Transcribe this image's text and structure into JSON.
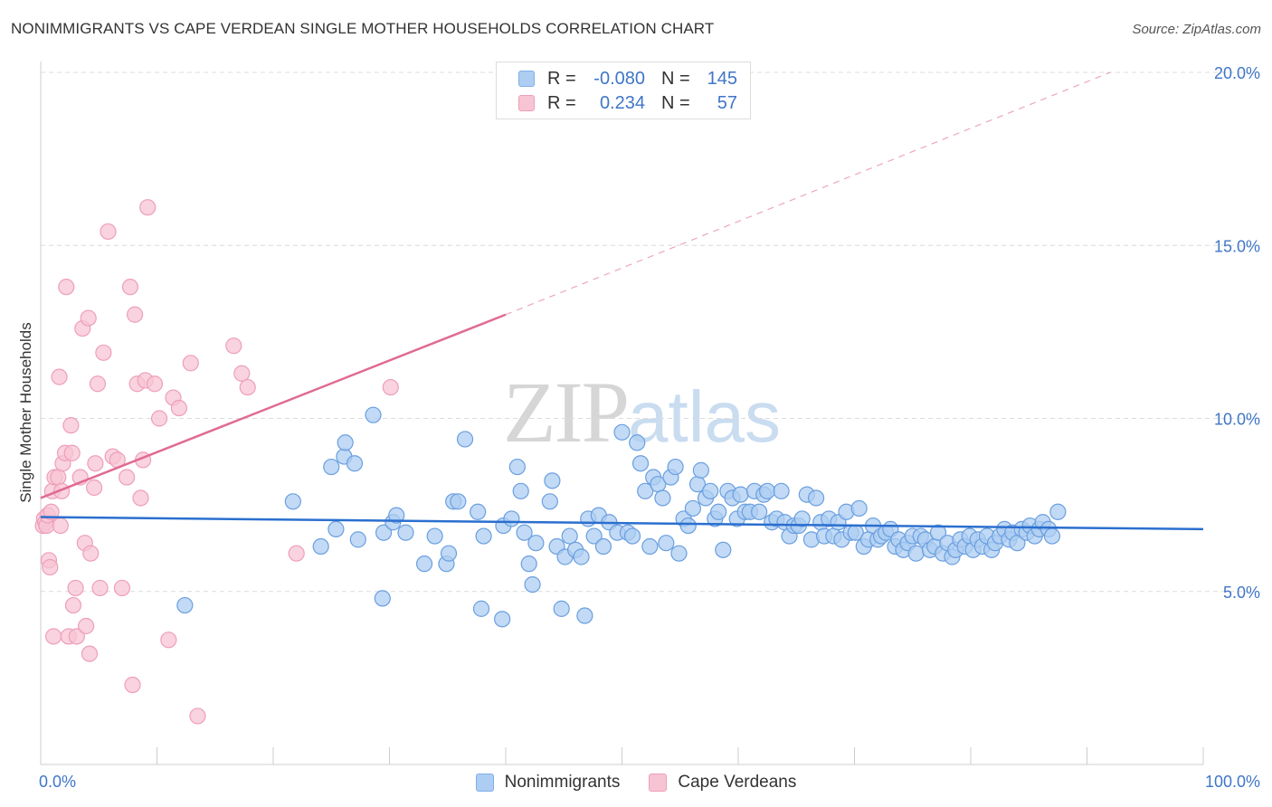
{
  "title": "NONIMMIGRANTS VS CAPE VERDEAN SINGLE MOTHER HOUSEHOLDS CORRELATION CHART",
  "source": "Source: ZipAtlas.com",
  "watermark": {
    "part1": "ZIP",
    "part2": "atlas"
  },
  "legend": {
    "rows": [
      {
        "r_label": "R =",
        "r_value": "-0.080",
        "n_label": "N =",
        "n_value": "145",
        "color": "#aecdf2",
        "border": "#7faee6"
      },
      {
        "r_label": "R =",
        "r_value": "0.234",
        "n_label": "N =",
        "n_value": "57",
        "color": "#f7c4d4",
        "border": "#ee9fb8"
      }
    ]
  },
  "bottom_legend": [
    {
      "label": "Nonimmigrants",
      "color": "#aecdf2",
      "border": "#7faee6"
    },
    {
      "label": "Cape Verdeans",
      "color": "#f7c4d4",
      "border": "#ee9fb8"
    }
  ],
  "chart_data": {
    "type": "scatter",
    "title": "NONIMMIGRANTS VS CAPE VERDEAN SINGLE MOTHER HOUSEHOLDS CORRELATION CHART",
    "xlabel": "",
    "ylabel": "Single Mother Households",
    "xlim": [
      0,
      100
    ],
    "ylim": [
      0,
      20
    ],
    "x_tick_labels": [
      "0.0%",
      "100.0%"
    ],
    "y_ticks": [
      5,
      10,
      15,
      20
    ],
    "y_tick_labels": [
      "5.0%",
      "10.0%",
      "15.0%",
      "20.0%"
    ],
    "grid": true,
    "legend_position": "top-center",
    "series": [
      {
        "name": "Nonimmigrants",
        "color": "#6a9fe0",
        "fill": "#aecdf2",
        "trend": {
          "x": [
            0,
            100
          ],
          "y": [
            7.15,
            6.8
          ],
          "color": "#2b6fcf"
        },
        "points": [
          [
            12.4,
            4.6
          ],
          [
            21.7,
            7.6
          ],
          [
            24.1,
            6.3
          ],
          [
            25.4,
            6.8
          ],
          [
            25.0,
            8.6
          ],
          [
            26.1,
            8.9
          ],
          [
            26.2,
            9.3
          ],
          [
            27.0,
            8.7
          ],
          [
            27.3,
            6.5
          ],
          [
            28.6,
            10.1
          ],
          [
            29.4,
            4.8
          ],
          [
            29.5,
            6.7
          ],
          [
            30.3,
            7.0
          ],
          [
            30.6,
            7.2
          ],
          [
            31.4,
            6.7
          ],
          [
            33.0,
            5.8
          ],
          [
            33.9,
            6.6
          ],
          [
            34.9,
            5.8
          ],
          [
            35.1,
            6.1
          ],
          [
            35.5,
            7.6
          ],
          [
            35.9,
            7.6
          ],
          [
            36.5,
            9.4
          ],
          [
            37.6,
            7.3
          ],
          [
            37.9,
            4.5
          ],
          [
            38.1,
            6.6
          ],
          [
            39.7,
            4.2
          ],
          [
            39.8,
            6.9
          ],
          [
            40.5,
            7.1
          ],
          [
            41.0,
            8.6
          ],
          [
            41.3,
            7.9
          ],
          [
            41.6,
            6.7
          ],
          [
            42.0,
            5.8
          ],
          [
            42.3,
            5.2
          ],
          [
            42.6,
            6.4
          ],
          [
            43.8,
            7.6
          ],
          [
            44.0,
            8.2
          ],
          [
            44.4,
            6.3
          ],
          [
            44.8,
            4.5
          ],
          [
            45.1,
            6.0
          ],
          [
            45.5,
            6.6
          ],
          [
            46.0,
            6.2
          ],
          [
            46.5,
            6.0
          ],
          [
            46.8,
            4.3
          ],
          [
            47.1,
            7.1
          ],
          [
            47.6,
            6.6
          ],
          [
            48.0,
            7.2
          ],
          [
            48.4,
            6.3
          ],
          [
            48.9,
            7.0
          ],
          [
            49.6,
            6.7
          ],
          [
            50.0,
            9.6
          ],
          [
            50.5,
            6.7
          ],
          [
            50.9,
            6.6
          ],
          [
            51.3,
            9.3
          ],
          [
            51.6,
            8.7
          ],
          [
            52.0,
            7.9
          ],
          [
            52.4,
            6.3
          ],
          [
            52.7,
            8.3
          ],
          [
            53.1,
            8.1
          ],
          [
            53.5,
            7.7
          ],
          [
            53.8,
            6.4
          ],
          [
            54.2,
            8.3
          ],
          [
            54.6,
            8.6
          ],
          [
            54.9,
            6.1
          ],
          [
            55.3,
            7.1
          ],
          [
            55.7,
            6.9
          ],
          [
            56.1,
            7.4
          ],
          [
            56.5,
            8.1
          ],
          [
            56.8,
            8.5
          ],
          [
            57.2,
            7.7
          ],
          [
            57.6,
            7.9
          ],
          [
            58.0,
            7.1
          ],
          [
            58.3,
            7.3
          ],
          [
            58.7,
            6.2
          ],
          [
            59.1,
            7.9
          ],
          [
            59.5,
            7.7
          ],
          [
            59.9,
            7.1
          ],
          [
            60.2,
            7.8
          ],
          [
            60.6,
            7.3
          ],
          [
            61.0,
            7.3
          ],
          [
            61.4,
            7.9
          ],
          [
            61.8,
            7.3
          ],
          [
            62.2,
            7.8
          ],
          [
            62.5,
            7.9
          ],
          [
            62.9,
            7.0
          ],
          [
            63.3,
            7.1
          ],
          [
            63.7,
            7.9
          ],
          [
            64.0,
            7.0
          ],
          [
            64.4,
            6.6
          ],
          [
            64.8,
            6.9
          ],
          [
            65.2,
            6.9
          ],
          [
            65.5,
            7.1
          ],
          [
            65.9,
            7.8
          ],
          [
            66.3,
            6.5
          ],
          [
            66.7,
            7.7
          ],
          [
            67.1,
            7.0
          ],
          [
            67.4,
            6.6
          ],
          [
            67.8,
            7.1
          ],
          [
            68.2,
            6.6
          ],
          [
            68.6,
            7.0
          ],
          [
            68.9,
            6.5
          ],
          [
            69.3,
            7.3
          ],
          [
            69.7,
            6.7
          ],
          [
            70.1,
            6.7
          ],
          [
            70.4,
            7.4
          ],
          [
            70.8,
            6.3
          ],
          [
            71.2,
            6.5
          ],
          [
            71.6,
            6.9
          ],
          [
            72.0,
            6.5
          ],
          [
            72.3,
            6.6
          ],
          [
            72.7,
            6.7
          ],
          [
            73.1,
            6.8
          ],
          [
            73.5,
            6.3
          ],
          [
            73.8,
            6.5
          ],
          [
            74.2,
            6.2
          ],
          [
            74.6,
            6.4
          ],
          [
            75.0,
            6.6
          ],
          [
            75.3,
            6.1
          ],
          [
            75.7,
            6.6
          ],
          [
            76.1,
            6.5
          ],
          [
            76.5,
            6.2
          ],
          [
            76.9,
            6.3
          ],
          [
            77.2,
            6.7
          ],
          [
            77.6,
            6.1
          ],
          [
            78.0,
            6.4
          ],
          [
            78.4,
            6.0
          ],
          [
            78.7,
            6.2
          ],
          [
            79.1,
            6.5
          ],
          [
            79.5,
            6.3
          ],
          [
            79.9,
            6.6
          ],
          [
            80.2,
            6.2
          ],
          [
            80.6,
            6.5
          ],
          [
            81.0,
            6.3
          ],
          [
            81.4,
            6.6
          ],
          [
            81.8,
            6.2
          ],
          [
            82.1,
            6.4
          ],
          [
            82.5,
            6.6
          ],
          [
            82.9,
            6.8
          ],
          [
            83.3,
            6.5
          ],
          [
            83.6,
            6.7
          ],
          [
            84.0,
            6.4
          ],
          [
            84.4,
            6.8
          ],
          [
            84.8,
            6.7
          ],
          [
            85.1,
            6.9
          ],
          [
            85.5,
            6.6
          ],
          [
            85.9,
            6.8
          ],
          [
            86.2,
            7.0
          ],
          [
            86.7,
            6.8
          ],
          [
            87.0,
            6.6
          ],
          [
            87.5,
            7.3
          ]
        ]
      },
      {
        "name": "Cape Verdeans",
        "color": "#ee9fb8",
        "fill": "#f7c4d4",
        "trend": {
          "x": [
            0,
            40
          ],
          "y": [
            7.7,
            13.0
          ],
          "dashed_to": [
            92,
            20.0
          ],
          "color": "#e06b92"
        },
        "points": [
          [
            0.2,
            6.9
          ],
          [
            0.3,
            7.1
          ],
          [
            0.4,
            7.0
          ],
          [
            0.5,
            6.9
          ],
          [
            0.6,
            7.2
          ],
          [
            0.7,
            5.9
          ],
          [
            0.8,
            5.7
          ],
          [
            0.9,
            7.3
          ],
          [
            1.0,
            7.9
          ],
          [
            1.1,
            3.7
          ],
          [
            1.2,
            8.3
          ],
          [
            1.5,
            8.3
          ],
          [
            1.6,
            11.2
          ],
          [
            1.7,
            6.9
          ],
          [
            1.8,
            7.9
          ],
          [
            1.9,
            8.7
          ],
          [
            2.1,
            9.0
          ],
          [
            2.2,
            13.8
          ],
          [
            2.4,
            3.7
          ],
          [
            2.6,
            9.8
          ],
          [
            2.7,
            9.0
          ],
          [
            2.8,
            4.6
          ],
          [
            3.0,
            5.1
          ],
          [
            3.1,
            3.7
          ],
          [
            3.4,
            8.3
          ],
          [
            3.6,
            12.6
          ],
          [
            3.8,
            6.4
          ],
          [
            3.9,
            4.0
          ],
          [
            4.1,
            12.9
          ],
          [
            4.2,
            3.2
          ],
          [
            4.3,
            6.1
          ],
          [
            4.6,
            8.0
          ],
          [
            4.7,
            8.7
          ],
          [
            4.9,
            11.0
          ],
          [
            5.1,
            5.1
          ],
          [
            5.4,
            11.9
          ],
          [
            5.8,
            15.4
          ],
          [
            6.2,
            8.9
          ],
          [
            6.6,
            8.8
          ],
          [
            7.0,
            5.1
          ],
          [
            7.4,
            8.3
          ],
          [
            7.7,
            13.8
          ],
          [
            7.9,
            2.3
          ],
          [
            8.1,
            13.0
          ],
          [
            8.3,
            11.0
          ],
          [
            8.6,
            7.7
          ],
          [
            8.8,
            8.8
          ],
          [
            9.0,
            11.1
          ],
          [
            9.2,
            16.1
          ],
          [
            9.8,
            11.0
          ],
          [
            10.2,
            10.0
          ],
          [
            11.0,
            3.6
          ],
          [
            11.4,
            10.6
          ],
          [
            11.9,
            10.3
          ],
          [
            12.9,
            11.6
          ],
          [
            13.5,
            1.4
          ],
          [
            16.6,
            12.1
          ],
          [
            17.3,
            11.3
          ],
          [
            17.8,
            10.9
          ],
          [
            22.0,
            6.1
          ],
          [
            30.1,
            10.9
          ]
        ]
      }
    ]
  }
}
